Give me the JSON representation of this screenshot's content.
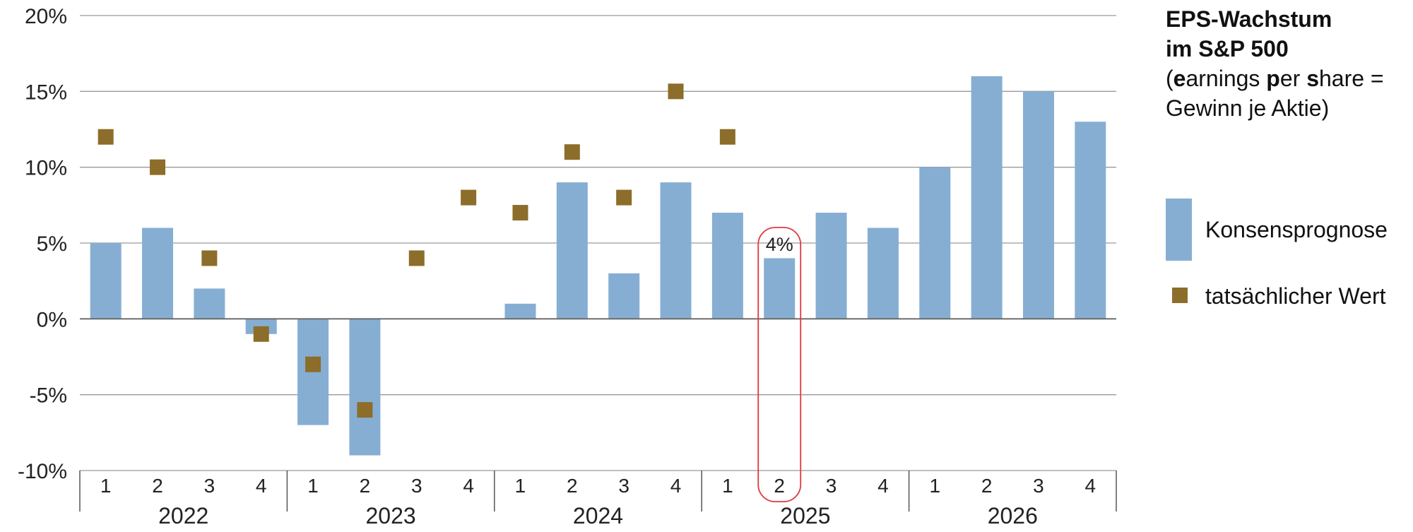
{
  "chart_data": {
    "type": "bar",
    "title_lines": [
      "EPS-Wachstum",
      "im S&P 500"
    ],
    "subtitle": {
      "open": "(",
      "e_bold": "e",
      "e_rest": "arnings ",
      "p_bold": "p",
      "p_rest": "er ",
      "s_bold": "s",
      "s_rest": "hare =",
      "line2": "Gewinn je Aktie)"
    },
    "xlabel": "",
    "ylabel": "",
    "ylim": [
      -10,
      20
    ],
    "yticks": [
      20,
      15,
      10,
      5,
      0,
      -5,
      -10
    ],
    "ytick_labels": [
      "20%",
      "15%",
      "10%",
      "5%",
      "0%",
      "-5%",
      "-10%"
    ],
    "grid": true,
    "legend_position": "right",
    "groups": [
      {
        "label": "2022",
        "quarters": [
          "1",
          "2",
          "3",
          "4"
        ]
      },
      {
        "label": "2023",
        "quarters": [
          "1",
          "2",
          "3",
          "4"
        ]
      },
      {
        "label": "2024",
        "quarters": [
          "1",
          "2",
          "3",
          "4"
        ]
      },
      {
        "label": "2025",
        "quarters": [
          "1",
          "2",
          "3",
          "4"
        ]
      },
      {
        "label": "2026",
        "quarters": [
          "1",
          "2",
          "3",
          "4"
        ]
      }
    ],
    "series": [
      {
        "name": "Konsensprognose",
        "type": "bar",
        "color": "#86aed3",
        "values": [
          5,
          6,
          2,
          -1,
          -7,
          -9,
          0,
          0,
          1,
          9,
          3,
          9,
          7,
          4,
          7,
          6,
          10,
          16,
          15,
          13
        ]
      },
      {
        "name": "tatsächlicher Wert",
        "type": "marker",
        "color": "#8c6d2a",
        "values": [
          12,
          10,
          4,
          -1,
          -3,
          -6,
          4,
          8,
          7,
          11,
          8,
          15,
          12,
          null,
          null,
          null,
          null,
          null,
          null,
          null
        ]
      }
    ],
    "annotation": {
      "text": "4%",
      "index": 13,
      "color": "#e0383e"
    }
  }
}
